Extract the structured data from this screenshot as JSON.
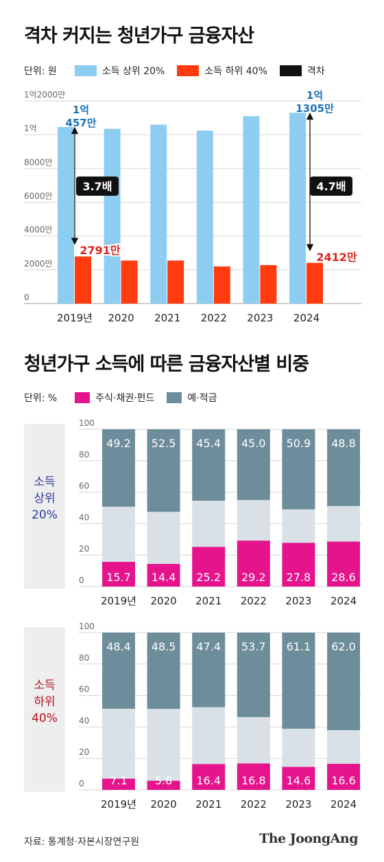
{
  "chart1": {
    "title": "격차 커지는 청년가구 금융자산",
    "unit": "단위: 원",
    "legend": [
      "소득 상위 20%",
      "소득 하위 40%",
      "격차"
    ],
    "colors": {
      "top": "#8ecdf2",
      "bottom": "#ff3b0f",
      "gap": "#111111",
      "topLabel": "#1a72b8",
      "bottomLabel": "#d9241c"
    },
    "ytick_labels": [
      "0",
      "2000만",
      "4000만",
      "6000만",
      "8000만",
      "1억",
      "1억2000만"
    ],
    "callouts": {
      "top_first": [
        "1억",
        "457만"
      ],
      "top_last": [
        "1억",
        "1305만"
      ],
      "bottom_first": "2791만",
      "bottom_last": "2412만",
      "gap_first": "3.7배",
      "gap_last": "4.7배"
    }
  },
  "chart2": {
    "title": "청년가구 소득에 따른 금융자산별 비중",
    "unit": "단위: %",
    "legend": [
      "주식·채권·펀드",
      "예·적금"
    ],
    "colors": {
      "stock": "#e5148d",
      "deposit": "#6e8d9b",
      "other": "#d9e1e6",
      "topGroup": "#2b3a9e",
      "bottomGroup": "#b3121d"
    },
    "ytick_labels": [
      "0",
      "20",
      "40",
      "60",
      "80",
      "100"
    ],
    "groups": [
      {
        "label": [
          "소득",
          "상위",
          "20%"
        ],
        "stock_labels": [
          "15.7",
          "14.4",
          "25.2",
          "29.2",
          "27.8",
          "28.6"
        ],
        "deposit_labels": [
          "49.2",
          "52.5",
          "45.4",
          "45.0",
          "50.9",
          "48.8"
        ]
      },
      {
        "label": [
          "소득",
          "하위",
          "40%"
        ],
        "stock_labels": [
          "7.1",
          "5.8",
          "16.4",
          "16.8",
          "14.6",
          "16.6"
        ],
        "deposit_labels": [
          "48.4",
          "48.5",
          "47.4",
          "53.7",
          "61.1",
          "62.0"
        ]
      }
    ]
  },
  "chart_data": [
    {
      "type": "bar",
      "title": "격차 커지는 청년가구 금융자산",
      "categories": [
        "2019년",
        "2020",
        "2021",
        "2022",
        "2023",
        "2024"
      ],
      "ylim": [
        0,
        120000000
      ],
      "series": [
        {
          "name": "소득 상위 20%",
          "values": [
            104570000,
            103500000,
            106000000,
            102500000,
            111000000,
            113050000
          ]
        },
        {
          "name": "소득 하위 40%",
          "values": [
            27910000,
            25500000,
            25500000,
            22000000,
            22800000,
            24120000
          ]
        }
      ],
      "annotations": {
        "격차 2019년": "3.7배",
        "격차 2024": "4.7배"
      }
    },
    {
      "type": "bar",
      "title": "청년가구 소득에 따른 금융자산별 비중",
      "group": "소득 상위 20%",
      "stacked": true,
      "categories": [
        "2019년",
        "2020",
        "2021",
        "2022",
        "2023",
        "2024"
      ],
      "ylim": [
        0,
        100
      ],
      "series": [
        {
          "name": "주식·채권·펀드",
          "values": [
            15.7,
            14.4,
            25.2,
            29.2,
            27.8,
            28.6
          ]
        },
        {
          "name": "예·적금",
          "values": [
            49.2,
            52.5,
            45.4,
            45.0,
            50.9,
            48.8
          ]
        }
      ]
    },
    {
      "type": "bar",
      "title": "청년가구 소득에 따른 금융자산별 비중",
      "group": "소득 하위 40%",
      "stacked": true,
      "categories": [
        "2019년",
        "2020",
        "2021",
        "2022",
        "2023",
        "2024"
      ],
      "ylim": [
        0,
        100
      ],
      "series": [
        {
          "name": "주식·채권·펀드",
          "values": [
            7.1,
            5.8,
            16.4,
            16.8,
            14.6,
            16.6
          ]
        },
        {
          "name": "예·적금",
          "values": [
            48.4,
            48.5,
            47.4,
            53.7,
            61.1,
            62.0
          ]
        }
      ]
    }
  ],
  "footer": {
    "source": "자료: 통계청·자본시장연구원",
    "logo": "The JoongAng"
  }
}
